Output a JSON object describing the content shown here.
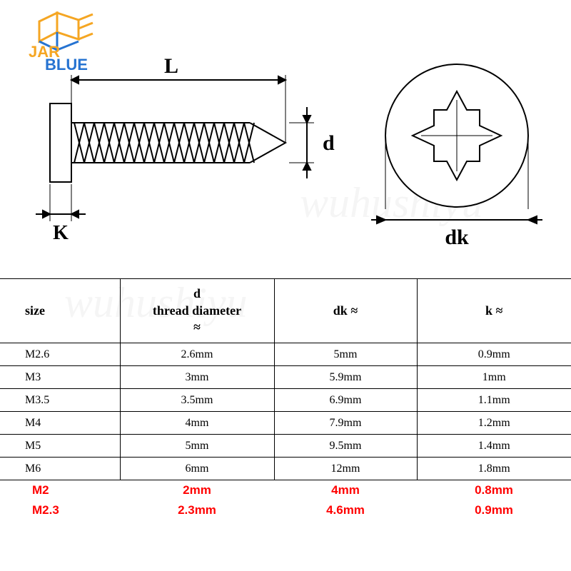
{
  "logo": {
    "text_top": "JAR",
    "text_bottom": "BLUE",
    "color_blue": "#2673d1",
    "color_orange": "#f5a623"
  },
  "diagram": {
    "stroke": "#000000",
    "labels": {
      "L": "L",
      "d": "d",
      "K": "K",
      "dk": "dk"
    },
    "label_fontsize": 30
  },
  "watermark": {
    "text": "wuhushiyu"
  },
  "table": {
    "headers": {
      "size": "size",
      "d_line1": "d",
      "d_line2": "thread diameter",
      "d_line3": "≈",
      "dk": "dk ≈",
      "k": "k ≈"
    },
    "rows": [
      {
        "size": "M2.6",
        "d": "2.6mm",
        "dk": "5mm",
        "k": "0.9mm"
      },
      {
        "size": "M3",
        "d": "3mm",
        "dk": "5.9mm",
        "k": "1mm"
      },
      {
        "size": "M3.5",
        "d": "3.5mm",
        "dk": "6.9mm",
        "k": "1.1mm"
      },
      {
        "size": "M4",
        "d": "4mm",
        "dk": "7.9mm",
        "k": "1.2mm"
      },
      {
        "size": "M5",
        "d": "5mm",
        "dk": "9.5mm",
        "k": "1.4mm"
      },
      {
        "size": "M6",
        "d": "6mm",
        "dk": "12mm",
        "k": "1.8mm"
      }
    ],
    "red_rows": [
      {
        "size": "M2",
        "d": "2mm",
        "dk": "4mm",
        "k": "0.8mm"
      },
      {
        "size": "M2.3",
        "d": "2.3mm",
        "dk": "4.6mm",
        "k": "0.9mm"
      }
    ],
    "header_fontsize": 18,
    "cell_fontsize": 16,
    "red_color": "#ff0000",
    "border_color": "#000000"
  }
}
